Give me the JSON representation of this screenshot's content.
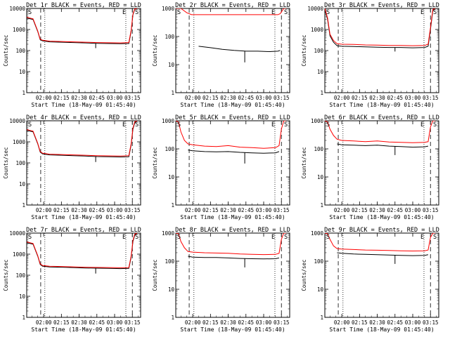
{
  "figure": {
    "x_tick_labels": [
      "02:00",
      "02:15",
      "02:30",
      "02:45",
      "03:00",
      "03:15"
    ],
    "y_tick_labels": [
      "1",
      "10",
      "100",
      "1000",
      "10000"
    ],
    "ylabel": "Counts/sec",
    "xlabel": "Start Time (18-May-09 01:45:40)",
    "series_colors": {
      "Events": "#000000",
      "LLD": "#ff0000"
    }
  },
  "chart_data": [
    {
      "type": "line",
      "title": "Det 1r BLACK = Events, RED = LLD",
      "xlabel": "Start Time (18-May-09 01:45:40)",
      "ylabel": "Counts/sec",
      "y_scale": "log",
      "ylim": [
        1,
        10000
      ],
      "xlim": [
        "01:45:40",
        "03:22:00"
      ],
      "grid": false,
      "legend": "none",
      "corner_labels": [
        "S",
        "E",
        "S"
      ],
      "x": [
        "01:45:40",
        "01:51:00",
        "01:55:00",
        "01:57:00",
        "01:59:00",
        "02:05:00",
        "02:15:00",
        "02:25:00",
        "02:35:00",
        "02:45:00",
        "02:55:00",
        "03:05:00",
        "03:12:00",
        "03:14:00",
        "03:15:30",
        "03:17:00",
        "03:19:00"
      ],
      "series": [
        {
          "name": "Events",
          "values": [
            3500,
            3000,
            800,
            330,
            290,
            260,
            250,
            240,
            230,
            220,
            215,
            210,
            215,
            800,
            5000,
            9000,
            10000
          ]
        },
        {
          "name": "LLD",
          "values": [
            3800,
            3200,
            850,
            350,
            310,
            280,
            270,
            260,
            250,
            240,
            235,
            230,
            240,
            900,
            5500,
            9500,
            10000
          ]
        }
      ],
      "dip": {
        "x": "02:44:00",
        "series": "Events",
        "value": 130
      },
      "markers": {
        "dashed": [
          "01:57:30",
          "03:15:00"
        ],
        "dotted": [
          "02:01:00",
          "03:09:30"
        ]
      }
    },
    {
      "type": "line",
      "title": "Det 2r BLACK = Events, RED = LLD",
      "xlabel": "Start Time (18-May-09 01:45:40)",
      "ylabel": "Counts/sec",
      "y_scale": "log",
      "ylim": [
        1,
        1000
      ],
      "xlim": [
        "01:45:40",
        "03:22:00"
      ],
      "grid": false,
      "legend": "none",
      "corner_labels": [
        "S",
        "E",
        "S"
      ],
      "x": [
        "01:45:40",
        "01:50:00",
        "01:55:00",
        "01:59:00",
        "02:05:00",
        "02:15:00",
        "02:25:00",
        "02:35:00",
        "02:45:00",
        "02:55:00",
        "03:05:00",
        "03:12:00",
        "03:14:00",
        "03:17:00",
        "03:19:00"
      ],
      "series": [
        {
          "name": "Events",
          "values": [
            null,
            null,
            null,
            null,
            45,
            40,
            35,
            32,
            30,
            30,
            29,
            30,
            32,
            null,
            null
          ]
        },
        {
          "name": "LLD",
          "values": [
            1000,
            1000,
            700,
            600,
            600,
            600,
            600,
            600,
            600,
            600,
            600,
            600,
            650,
            1000,
            1000
          ]
        }
      ],
      "dip": {
        "x": "02:44:00",
        "series": "Events",
        "value": 12
      },
      "markers": {
        "dashed": [
          "01:57:00",
          "03:15:00"
        ],
        "dotted": [
          "02:01:00",
          "03:09:30"
        ]
      }
    },
    {
      "type": "line",
      "title": "Det 3r BLACK = Events, RED = LLD",
      "xlabel": "Start Time (18-May-09 01:45:40)",
      "ylabel": "Counts/sec",
      "y_scale": "log",
      "ylim": [
        1,
        10000
      ],
      "xlim": [
        "01:45:40",
        "03:22:00"
      ],
      "grid": false,
      "legend": "none",
      "corner_labels": [
        "S",
        "E",
        "S"
      ],
      "x": [
        "01:45:40",
        "01:48:00",
        "01:50:00",
        "01:53:00",
        "01:56:00",
        "02:00:00",
        "02:10:00",
        "02:20:00",
        "02:30:00",
        "02:40:00",
        "02:50:00",
        "03:00:00",
        "03:10:00",
        "03:13:00",
        "03:15:00",
        "03:17:00",
        "03:19:00"
      ],
      "series": [
        {
          "name": "Events",
          "values": [
            9000,
            3000,
            500,
            250,
            170,
            160,
            155,
            150,
            145,
            140,
            140,
            135,
            140,
            160,
            1000,
            8000,
            10000
          ]
        },
        {
          "name": "LLD",
          "values": [
            10000,
            3500,
            600,
            300,
            210,
            200,
            195,
            185,
            180,
            175,
            175,
            170,
            175,
            200,
            1200,
            9000,
            10000
          ]
        }
      ],
      "dip": {
        "x": "02:45:00",
        "series": "Events",
        "value": 90
      },
      "markers": {
        "dashed": [
          "01:57:00",
          "03:15:00"
        ],
        "dotted": [
          "02:01:00",
          "03:09:30"
        ]
      }
    },
    {
      "type": "line",
      "title": "Det 4r BLACK = Events, RED = LLD",
      "xlabel": "Start Time (18-May-09 01:45:40)",
      "ylabel": "Counts/sec",
      "y_scale": "log",
      "ylim": [
        1,
        10000
      ],
      "xlim": [
        "01:45:40",
        "03:22:00"
      ],
      "grid": false,
      "legend": "none",
      "corner_labels": [
        "S",
        "E",
        "S"
      ],
      "x": [
        "01:45:40",
        "01:51:00",
        "01:55:00",
        "01:57:00",
        "01:59:00",
        "02:05:00",
        "02:15:00",
        "02:25:00",
        "02:35:00",
        "02:45:00",
        "02:55:00",
        "03:05:00",
        "03:12:00",
        "03:14:00",
        "03:15:30",
        "03:17:00",
        "03:19:00"
      ],
      "series": [
        {
          "name": "Events",
          "values": [
            3500,
            3000,
            800,
            330,
            270,
            240,
            230,
            220,
            210,
            200,
            195,
            190,
            195,
            700,
            4000,
            8000,
            10000
          ]
        },
        {
          "name": "LLD",
          "values": [
            3800,
            3200,
            850,
            350,
            290,
            260,
            250,
            240,
            230,
            220,
            215,
            210,
            220,
            800,
            4500,
            9000,
            10000
          ]
        }
      ],
      "dip": {
        "x": "02:44:00",
        "series": "Events",
        "value": 110
      },
      "markers": {
        "dashed": [
          "01:57:30",
          "03:15:00"
        ],
        "dotted": [
          "02:01:00",
          "03:09:30"
        ]
      }
    },
    {
      "type": "line",
      "title": "Det 5r BLACK = Events, RED = LLD",
      "xlabel": "Start Time (18-May-09 01:45:40)",
      "ylabel": "Counts/sec",
      "y_scale": "log",
      "ylim": [
        1,
        1000
      ],
      "xlim": [
        "01:45:40",
        "03:22:00"
      ],
      "grid": false,
      "legend": "none",
      "corner_labels": [
        "S",
        "E",
        "S"
      ],
      "x": [
        "01:45:40",
        "01:48:00",
        "01:50:00",
        "01:53:00",
        "01:56:00",
        "02:00:00",
        "02:10:00",
        "02:20:00",
        "02:30:00",
        "02:40:00",
        "02:50:00",
        "03:00:00",
        "03:10:00",
        "03:13:00",
        "03:15:00",
        "03:17:00",
        "03:19:00"
      ],
      "series": [
        {
          "name": "Events",
          "values": [
            null,
            null,
            null,
            null,
            90,
            85,
            80,
            78,
            80,
            75,
            72,
            70,
            72,
            80,
            null,
            null,
            null
          ]
        },
        {
          "name": "LLD",
          "values": [
            1000,
            900,
            400,
            200,
            150,
            140,
            125,
            120,
            130,
            115,
            110,
            105,
            110,
            130,
            500,
            1000,
            1000
          ]
        }
      ],
      "dip": {
        "x": "02:44:00",
        "series": "Events",
        "value": 30
      },
      "markers": {
        "dashed": [
          "01:57:00",
          "03:15:00"
        ],
        "dotted": [
          "02:01:00",
          "03:09:30"
        ]
      }
    },
    {
      "type": "line",
      "title": "Det 6r BLACK = Events, RED = LLD",
      "xlabel": "Start Time (18-May-09 01:45:40)",
      "ylabel": "Counts/sec",
      "y_scale": "log",
      "ylim": [
        1,
        1000
      ],
      "xlim": [
        "01:45:40",
        "03:22:00"
      ],
      "grid": false,
      "legend": "none",
      "corner_labels": [
        "S",
        "E",
        "S"
      ],
      "x": [
        "01:45:40",
        "01:48:00",
        "01:50:00",
        "01:53:00",
        "01:56:00",
        "02:00:00",
        "02:10:00",
        "02:20:00",
        "02:30:00",
        "02:40:00",
        "02:50:00",
        "03:00:00",
        "03:10:00",
        "03:13:00",
        "03:15:00",
        "03:17:00",
        "03:19:00"
      ],
      "series": [
        {
          "name": "Events",
          "values": [
            null,
            null,
            null,
            null,
            150,
            140,
            135,
            130,
            135,
            125,
            120,
            115,
            118,
            125,
            null,
            null,
            null
          ]
        },
        {
          "name": "LLD",
          "values": [
            1000,
            900,
            500,
            300,
            220,
            200,
            190,
            180,
            190,
            175,
            170,
            165,
            170,
            180,
            600,
            1000,
            1000
          ]
        }
      ],
      "dip": {
        "x": "02:45:00",
        "series": "Events",
        "value": 60
      },
      "markers": {
        "dashed": [
          "01:57:00",
          "03:15:00"
        ],
        "dotted": [
          "02:01:00",
          "03:09:30"
        ]
      }
    },
    {
      "type": "line",
      "title": "Det 7r BLACK = Events, RED = LLD",
      "xlabel": "Start Time (18-May-09 01:45:40)",
      "ylabel": "Counts/sec",
      "y_scale": "log",
      "ylim": [
        1,
        10000
      ],
      "xlim": [
        "01:45:40",
        "03:22:00"
      ],
      "grid": false,
      "legend": "none",
      "corner_labels": [
        "S",
        "E",
        "S"
      ],
      "x": [
        "01:45:40",
        "01:51:00",
        "01:55:00",
        "01:57:00",
        "01:59:00",
        "02:05:00",
        "02:15:00",
        "02:25:00",
        "02:35:00",
        "02:45:00",
        "02:55:00",
        "03:05:00",
        "03:12:00",
        "03:14:00",
        "03:15:30",
        "03:17:00",
        "03:19:00"
      ],
      "series": [
        {
          "name": "Events",
          "values": [
            3500,
            3000,
            800,
            330,
            270,
            245,
            240,
            230,
            220,
            215,
            210,
            205,
            210,
            700,
            4000,
            8000,
            10000
          ]
        },
        {
          "name": "LLD",
          "values": [
            3800,
            3200,
            850,
            350,
            290,
            265,
            260,
            250,
            240,
            235,
            230,
            225,
            230,
            800,
            4500,
            9000,
            10000
          ]
        }
      ],
      "dip": {
        "x": "02:44:00",
        "series": "Events",
        "value": 120
      },
      "markers": {
        "dashed": [
          "01:57:30",
          "03:15:00"
        ],
        "dotted": [
          "02:01:00",
          "03:09:30"
        ]
      }
    },
    {
      "type": "line",
      "title": "Det 8r BLACK = Events, RED = LLD",
      "xlabel": "Start Time (18-May-09 01:45:40)",
      "ylabel": "Counts/sec",
      "y_scale": "log",
      "ylim": [
        1,
        1000
      ],
      "xlim": [
        "01:45:40",
        "03:22:00"
      ],
      "grid": false,
      "legend": "none",
      "corner_labels": [
        "S",
        "E",
        "S"
      ],
      "x": [
        "01:45:40",
        "01:48:00",
        "01:50:00",
        "01:53:00",
        "01:56:00",
        "02:00:00",
        "02:10:00",
        "02:20:00",
        "02:30:00",
        "02:40:00",
        "02:50:00",
        "03:00:00",
        "03:10:00",
        "03:13:00",
        "03:15:00",
        "03:17:00",
        "03:19:00"
      ],
      "series": [
        {
          "name": "Events",
          "values": [
            null,
            null,
            null,
            null,
            150,
            140,
            135,
            135,
            130,
            125,
            122,
            120,
            122,
            130,
            null,
            null,
            null
          ]
        },
        {
          "name": "LLD",
          "values": [
            1000,
            950,
            500,
            300,
            220,
            210,
            200,
            195,
            190,
            180,
            175,
            172,
            175,
            190,
            600,
            1000,
            1000
          ]
        }
      ],
      "dip": {
        "x": "02:44:00",
        "series": "Events",
        "value": 60
      },
      "markers": {
        "dashed": [
          "01:57:00",
          "03:15:00"
        ],
        "dotted": [
          "02:01:00",
          "03:09:30"
        ]
      }
    },
    {
      "type": "line",
      "title": "Det 9r BLACK = Events, RED = LLD",
      "xlabel": "Start Time (18-May-09 01:45:40)",
      "ylabel": "Counts/sec",
      "y_scale": "log",
      "ylim": [
        1,
        1000
      ],
      "xlim": [
        "01:45:40",
        "03:22:00"
      ],
      "grid": false,
      "legend": "none",
      "corner_labels": [
        "S",
        "E",
        "S"
      ],
      "x": [
        "01:45:40",
        "01:48:00",
        "01:50:00",
        "01:53:00",
        "01:56:00",
        "02:00:00",
        "02:10:00",
        "02:20:00",
        "02:30:00",
        "02:40:00",
        "02:50:00",
        "03:00:00",
        "03:10:00",
        "03:13:00",
        "03:15:00",
        "03:17:00",
        "03:19:00"
      ],
      "series": [
        {
          "name": "Events",
          "values": [
            null,
            null,
            null,
            null,
            200,
            190,
            180,
            175,
            170,
            165,
            160,
            158,
            160,
            170,
            null,
            null,
            null
          ]
        },
        {
          "name": "LLD",
          "values": [
            1000,
            950,
            600,
            350,
            280,
            270,
            260,
            250,
            245,
            240,
            235,
            230,
            235,
            250,
            700,
            1000,
            1000
          ]
        }
      ],
      "dip": {
        "x": "02:45:00",
        "series": "Events",
        "value": 80
      },
      "markers": {
        "dashed": [
          "01:57:00",
          "03:15:00"
        ],
        "dotted": [
          "02:01:00",
          "03:09:30"
        ]
      }
    }
  ]
}
